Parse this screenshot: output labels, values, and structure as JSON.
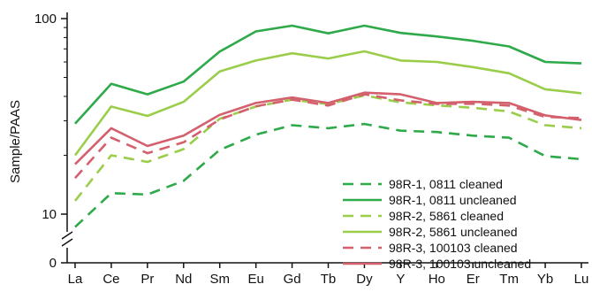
{
  "chart_data": {
    "type": "line",
    "title": "",
    "xlabel": "",
    "ylabel": "Sample/PAAS",
    "y_scale": "log",
    "ylim": [
      8,
      100
    ],
    "y_ticks": [
      {
        "value": 100,
        "label": "100"
      },
      {
        "value": 10,
        "label": "10"
      }
    ],
    "y_break_label": "0",
    "grid": false,
    "legend_position": "lower-right",
    "categories": [
      "La",
      "Ce",
      "Pr",
      "Nd",
      "Sm",
      "Eu",
      "Gd",
      "Tb",
      "Dy",
      "Y",
      "Ho",
      "Er",
      "Tm",
      "Yb",
      "Lu"
    ],
    "series": [
      {
        "name": "98R-1, 0811 cleaned",
        "color": "#2eaa4a",
        "dash": "dashed",
        "values": [
          8.6,
          12.8,
          12.6,
          14.8,
          21.3,
          25.5,
          28.5,
          27.5,
          28.9,
          26.7,
          26.3,
          25.2,
          24.6,
          19.8,
          19.1
        ]
      },
      {
        "name": "98R-1, 0811 uncleaned",
        "color": "#2eaa4a",
        "dash": "solid",
        "values": [
          29,
          46.4,
          41,
          47.6,
          67.8,
          86,
          92,
          84,
          92,
          84.5,
          81,
          77,
          72,
          60,
          59
        ]
      },
      {
        "name": "98R-2, 5861 cleaned",
        "color": "#9acd4a",
        "dash": "dashed",
        "values": [
          11.7,
          20,
          18.5,
          21.5,
          30.7,
          35.5,
          38.5,
          36.5,
          40.5,
          37.3,
          36,
          35,
          33.5,
          28.5,
          27.5
        ]
      },
      {
        "name": "98R-2, 5861 uncleaned",
        "color": "#9acd4a",
        "dash": "solid",
        "values": [
          20,
          35.5,
          31.8,
          37.5,
          53.7,
          61,
          66.5,
          62.5,
          68,
          61,
          60,
          56.5,
          52.5,
          43.5,
          41.5
        ]
      },
      {
        "name": "98R-3, 100103 cleaned",
        "color": "#d4606e",
        "dash": "dashed",
        "values": [
          15.3,
          24.6,
          20.5,
          23.3,
          30.5,
          35.6,
          38.5,
          35.9,
          41,
          38.2,
          36.6,
          36.7,
          35.9,
          31.4,
          31
        ]
      },
      {
        "name": "98R-3, 100103 uncleaned",
        "color": "#d4606e",
        "dash": "solid",
        "values": [
          18,
          27.5,
          22.3,
          25.2,
          32.2,
          37,
          39.5,
          37,
          41.8,
          41,
          37,
          37.5,
          37,
          32,
          30.3
        ]
      }
    ]
  }
}
